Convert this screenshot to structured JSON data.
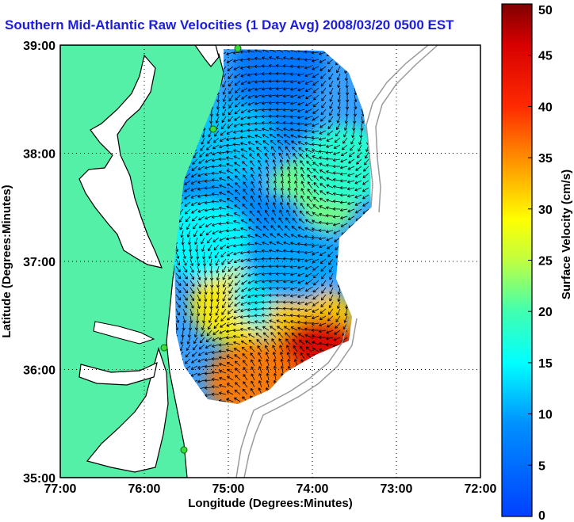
{
  "chart_data": {
    "type": "heatmap",
    "title": "Southern Mid-Atlantic Raw Velocities (1 Day Avg) 2008/03/20 0500 EST",
    "xlabel": "Longitude (Degrees:Minutes)",
    "ylabel": "Latitude (Degrees:Minutes)",
    "x_ticks": [
      "77:00",
      "76:00",
      "75:00",
      "74:00",
      "73:00",
      "72:00"
    ],
    "y_ticks": [
      "35:00",
      "36:00",
      "37:00",
      "38:00",
      "39:00"
    ],
    "xlim_deg_west": [
      77,
      72
    ],
    "ylim_deg_north": [
      35,
      39
    ],
    "colorbar": {
      "label": "Surface Velocity (cm/s)",
      "range": [
        0,
        50
      ],
      "ticks": [
        0,
        5,
        10,
        15,
        20,
        25,
        30,
        35,
        40,
        45,
        50
      ],
      "colormap": "jet"
    },
    "grid": "dotted",
    "velocity_field": [
      {
        "lon": 74.5,
        "lat": 38.4,
        "speed": 8
      },
      {
        "lon": 74.0,
        "lat": 37.6,
        "speed": 22
      },
      {
        "lon": 74.6,
        "lat": 37.3,
        "speed": 8
      },
      {
        "lon": 74.9,
        "lat": 36.6,
        "speed": 30
      },
      {
        "lon": 74.4,
        "lat": 36.7,
        "speed": 14
      },
      {
        "lon": 74.0,
        "lat": 36.4,
        "speed": 32
      },
      {
        "lon": 73.9,
        "lat": 36.1,
        "speed": 46
      },
      {
        "lon": 75.2,
        "lat": 37.7,
        "speed": 9
      },
      {
        "lon": 75.3,
        "lat": 37.2,
        "speed": 15
      },
      {
        "lon": 74.7,
        "lat": 35.9,
        "speed": 36
      },
      {
        "lon": 73.6,
        "lat": 37.9,
        "speed": 18
      },
      {
        "lon": 74.2,
        "lat": 37.0,
        "speed": 10
      },
      {
        "lon": 75.0,
        "lat": 38.1,
        "speed": 12
      },
      {
        "lon": 74.4,
        "lat": 38.8,
        "speed": 6
      }
    ]
  },
  "colors": {
    "land": "#55f0a8",
    "title": "#1c1cdf",
    "coast": "#000000",
    "bathymetry": "#9a9a9a",
    "station": "#3bdc3b"
  }
}
